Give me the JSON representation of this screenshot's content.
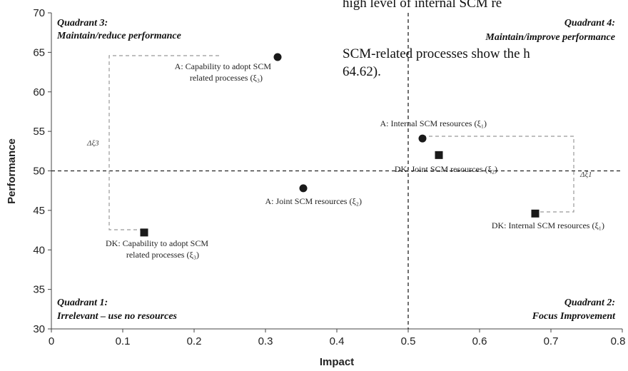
{
  "chart_data": {
    "type": "scatter",
    "xlabel": "Impact",
    "ylabel": "Performance",
    "xlim": [
      0,
      0.8
    ],
    "ylim": [
      30,
      70
    ],
    "x_ticks": [
      "0",
      "0.1",
      "0.2",
      "0.3",
      "0.4",
      "0.5",
      "0.6",
      "0.7",
      "0.8"
    ],
    "y_ticks": [
      "30",
      "35",
      "40",
      "45",
      "50",
      "55",
      "60",
      "65",
      "70"
    ],
    "grid": false,
    "reference_lines": {
      "x": 0.5,
      "y": 50
    },
    "quadrants": [
      {
        "id": "q3",
        "title": "Quadrant 3:",
        "subtitle": "Maintain/reduce performance"
      },
      {
        "id": "q4",
        "title": "Quadrant 4:",
        "subtitle": "Maintain/improve performance"
      },
      {
        "id": "q1",
        "title": "Quadrant 1:",
        "subtitle": "Irrelevant – use no resources"
      },
      {
        "id": "q2",
        "title": "Quadrant 2:",
        "subtitle": "Focus Improvement"
      }
    ],
    "points": [
      {
        "id": "a-capability",
        "shape": "circle",
        "x": 0.317,
        "y": 64.4,
        "label": [
          "A: Capability to adopt SCM",
          "related processes (ξ₃)"
        ]
      },
      {
        "id": "a-internal",
        "shape": "circle",
        "x": 0.52,
        "y": 54.1,
        "label": [
          "A: Internal SCM resources (ξ₁)"
        ]
      },
      {
        "id": "a-joint",
        "shape": "circle",
        "x": 0.353,
        "y": 47.8,
        "label": [
          "A: Joint SCM resources (ξ₂)"
        ]
      },
      {
        "id": "dk-joint",
        "shape": "square",
        "x": 0.543,
        "y": 52.0,
        "label": [
          "DK: Joint SCM resources (ξ₂)"
        ]
      },
      {
        "id": "dk-internal",
        "shape": "square",
        "x": 0.678,
        "y": 44.6,
        "label": [
          "DK: Internal SCM resources (ξ₁)"
        ]
      },
      {
        "id": "dk-capability",
        "shape": "square",
        "x": 0.13,
        "y": 42.2,
        "label": [
          "DK: Capability to adopt SCM",
          "related processes (ξ₃)"
        ]
      }
    ],
    "annotations": [
      {
        "id": "delta-3",
        "text": "Δξ3"
      },
      {
        "id": "delta-1",
        "text": "Δξ1"
      }
    ]
  },
  "overlay_text": {
    "line1": "high   level   of   internal   SCM   re",
    "line2": "SCM-related  processes  show  the  h",
    "line3": "64.62)."
  }
}
